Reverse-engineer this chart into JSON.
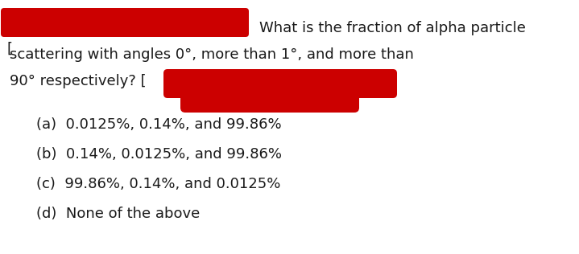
{
  "bg_color": "#ffffff",
  "question_line1": "What is the fraction of alpha particle",
  "question_line2": "scattering with angles 0°, more than 1°, and more than",
  "question_line3": "90° respectively? [",
  "options": [
    "(a)  0.0125%, 0.14%, and 99.86%",
    "(b)  0.14%, 0.0125%, and 99.86%",
    "(c)  99.86%, 0.14%, and 0.0125%",
    "(d)  None of the above"
  ],
  "font_size_question": 13.0,
  "font_size_options": 13.0,
  "text_color": "#1a1a1a",
  "redact_color": "#cc0000",
  "fig_width": 7.19,
  "fig_height": 3.16,
  "dpi": 100
}
